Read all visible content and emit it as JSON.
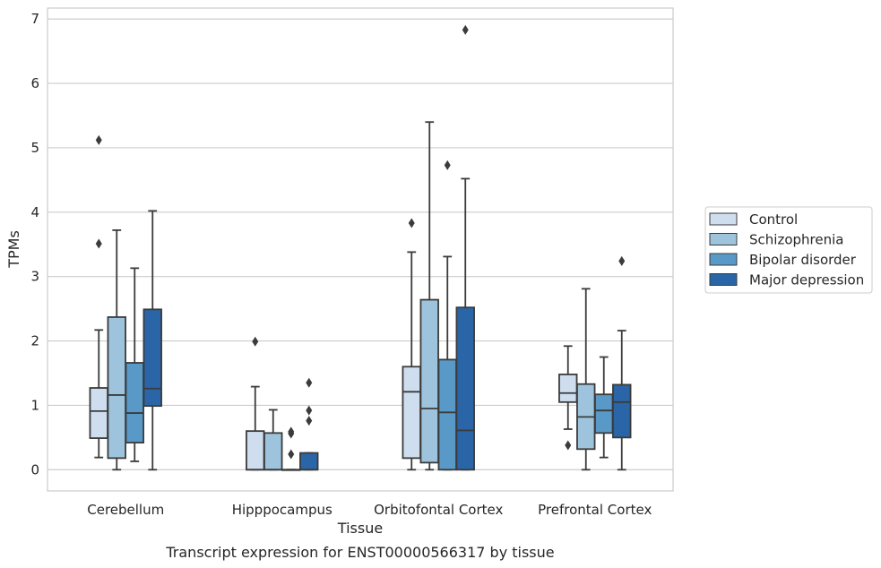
{
  "chart_data": {
    "type": "box",
    "caption": "Transcript expression for ENST00000566317 by tissue",
    "xlabel": "Tissue",
    "ylabel": "TPMs",
    "ylim": [
      -0.33,
      7.17
    ],
    "yticks": [
      0,
      1,
      2,
      3,
      4,
      5,
      6,
      7
    ],
    "grid": "horizontal",
    "legend_position": "right",
    "categories": [
      "Cerebellum",
      "Hipppocampus",
      "Orbitofontal Cortex",
      "Prefrontal Cortex"
    ],
    "series": [
      {
        "name": "Control",
        "color": "#cfdeef",
        "boxes": [
          {
            "whislo": 0.19,
            "q1": 0.49,
            "med": 0.91,
            "q3": 1.27,
            "whishi": 2.17,
            "fliers": [
              3.51,
              5.12
            ]
          },
          {
            "whislo": 0.0,
            "q1": 0.0,
            "med": 0.0,
            "q3": 0.6,
            "whishi": 1.29,
            "fliers": [
              1.99
            ]
          },
          {
            "whislo": 0.0,
            "q1": 0.18,
            "med": 1.21,
            "q3": 1.6,
            "whishi": 3.38,
            "fliers": [
              3.83
            ]
          },
          {
            "whislo": 0.63,
            "q1": 1.05,
            "med": 1.19,
            "q3": 1.48,
            "whishi": 1.92,
            "fliers": [
              0.38
            ]
          }
        ]
      },
      {
        "name": "Schizophrenia",
        "color": "#9ec4dd",
        "boxes": [
          {
            "whislo": 0.0,
            "q1": 0.18,
            "med": 1.16,
            "q3": 2.37,
            "whishi": 3.72,
            "fliers": []
          },
          {
            "whislo": 0.0,
            "q1": 0.0,
            "med": 0.0,
            "q3": 0.57,
            "whishi": 0.93,
            "fliers": []
          },
          {
            "whislo": 0.0,
            "q1": 0.11,
            "med": 0.95,
            "q3": 2.64,
            "whishi": 5.4,
            "fliers": []
          },
          {
            "whislo": 0.0,
            "q1": 0.32,
            "med": 0.82,
            "q3": 1.33,
            "whishi": 2.81,
            "fliers": []
          }
        ]
      },
      {
        "name": "Bipolar disorder",
        "color": "#5899c8",
        "boxes": [
          {
            "whislo": 0.13,
            "q1": 0.42,
            "med": 0.88,
            "q3": 1.66,
            "whishi": 3.13,
            "fliers": []
          },
          {
            "whislo": 0.0,
            "q1": 0.0,
            "med": 0.0,
            "q3": 0.0,
            "whishi": 0.0,
            "fliers": [
              0.24,
              0.56,
              0.59
            ]
          },
          {
            "whislo": 0.0,
            "q1": 0.0,
            "med": 0.89,
            "q3": 1.71,
            "whishi": 3.31,
            "fliers": [
              4.73
            ]
          },
          {
            "whislo": 0.19,
            "q1": 0.57,
            "med": 0.92,
            "q3": 1.17,
            "whishi": 1.75,
            "fliers": []
          }
        ]
      },
      {
        "name": "Major depression",
        "color": "#2a66a7",
        "boxes": [
          {
            "whislo": 0.0,
            "q1": 0.99,
            "med": 1.26,
            "q3": 2.49,
            "whishi": 4.02,
            "fliers": []
          },
          {
            "whislo": 0.0,
            "q1": 0.0,
            "med": 0.0,
            "q3": 0.26,
            "whishi": 0.26,
            "fliers": [
              0.76,
              0.92,
              1.35
            ]
          },
          {
            "whislo": 0.0,
            "q1": 0.0,
            "med": 0.61,
            "q3": 2.52,
            "whishi": 4.52,
            "fliers": [
              6.83
            ]
          },
          {
            "whislo": 0.0,
            "q1": 0.5,
            "med": 1.05,
            "q3": 1.32,
            "whishi": 2.16,
            "fliers": [
              3.24
            ]
          }
        ]
      }
    ]
  }
}
